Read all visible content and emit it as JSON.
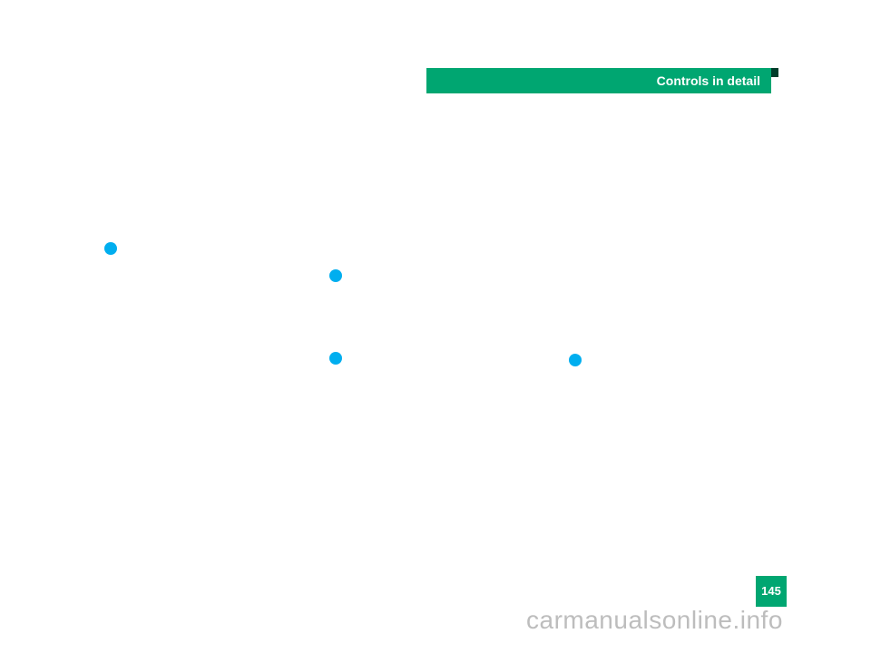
{
  "header": {
    "title": "Controls in detail"
  },
  "page_number": "145",
  "watermark": "carmanualsonline.info",
  "colors": {
    "header_bg": "#00a671",
    "header_text": "#ffffff",
    "bullet": "#00aeef",
    "page_bg": "#ffffff",
    "watermark": "#bdbdbd",
    "notch": "#003d2a"
  }
}
